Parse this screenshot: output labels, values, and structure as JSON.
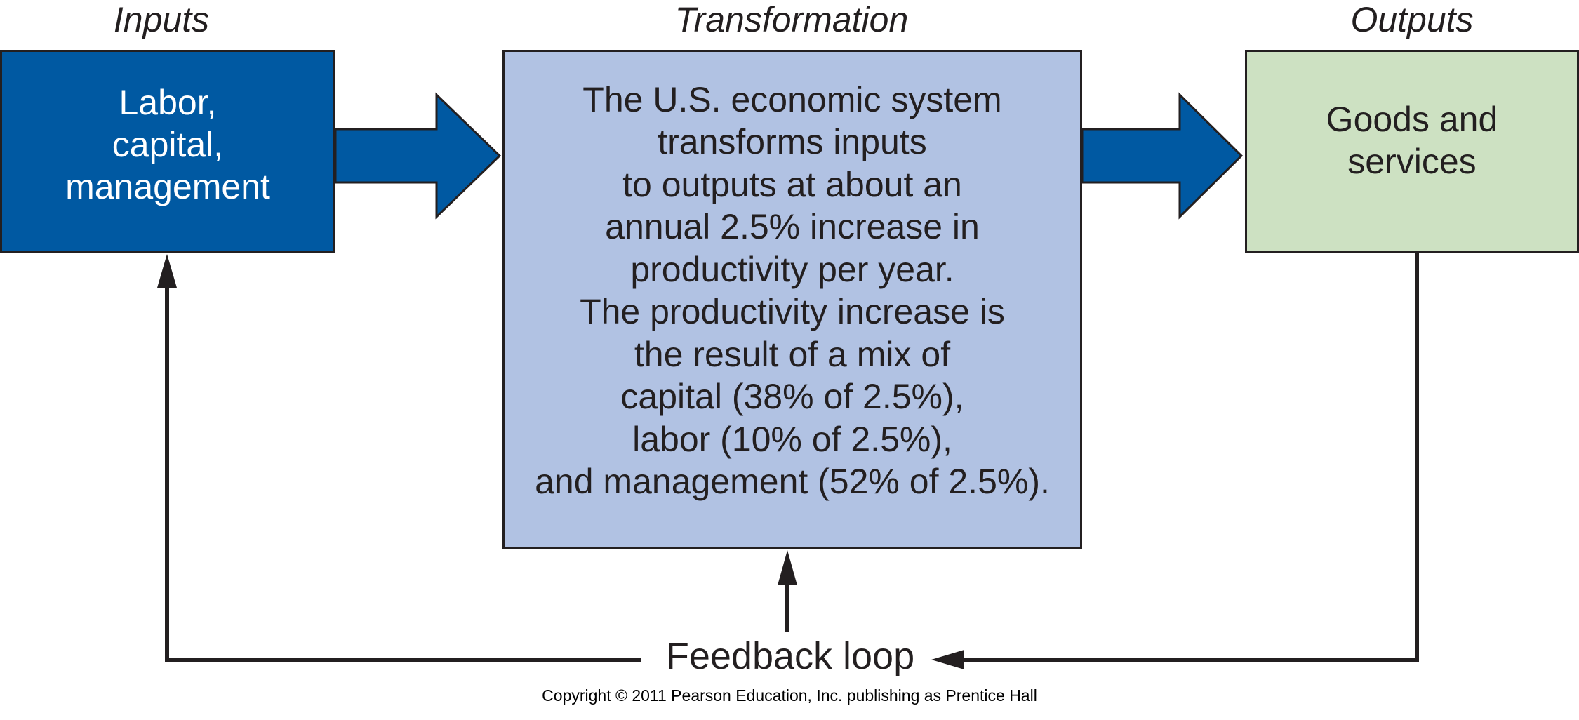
{
  "headings": {
    "inputs": "Inputs",
    "transformation": "Transformation",
    "outputs": "Outputs"
  },
  "boxes": {
    "inputs": "Labor,\ncapital,\nmanagement",
    "transformation": "The U.S. economic system\ntransforms inputs\nto outputs at about an\nannual 2.5% increase in\nproductivity per year.\nThe productivity increase is\nthe result of a mix of\ncapital (38% of 2.5%),\nlabor (10% of 2.5%),\nand management (52% of 2.5%).",
    "outputs": "Goods and\nservices"
  },
  "feedback_label": "Feedback loop",
  "copyright": "Copyright © 2011 Pearson Education, Inc. publishing as Prentice Hall",
  "colors": {
    "inputs_fill": "#0059a2",
    "transformation_fill": "#b1c2e3",
    "outputs_fill": "#cde1c2",
    "arrow_fill": "#0059a2",
    "line": "#231f20"
  }
}
